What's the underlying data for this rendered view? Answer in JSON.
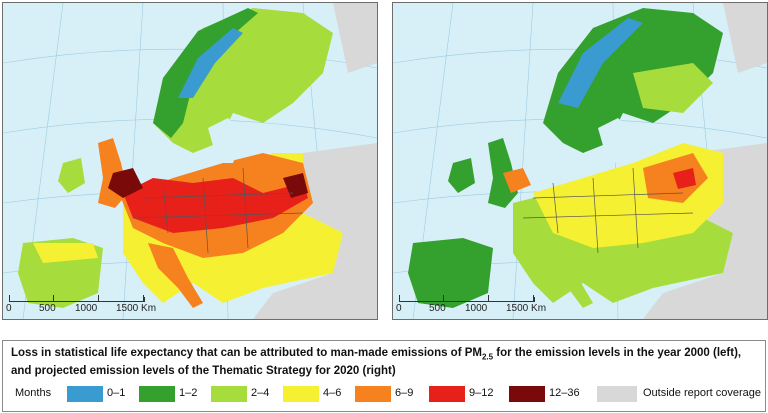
{
  "maps": {
    "left": {
      "scale": {
        "labels": [
          "0",
          "500",
          "1000",
          "1500 Km"
        ]
      }
    },
    "right": {
      "scale": {
        "labels": [
          "0",
          "500",
          "1000",
          "1500 Km"
        ]
      }
    }
  },
  "caption": {
    "text_pre": "Loss in statistical life expectancy that can be attributed to man-made emissions of PM",
    "pm_sub": "2.5",
    "text_post": " for the emission levels in the year 2000 (left), and projected emission levels of the Thematic Strategy for 2020 (right)"
  },
  "legend": {
    "title": "Months",
    "items": [
      {
        "label": "0–1",
        "color": "#3a9bd0"
      },
      {
        "label": "1–2",
        "color": "#34a02e"
      },
      {
        "label": "2–4",
        "color": "#a6dc3c"
      },
      {
        "label": "4–6",
        "color": "#f5f032"
      },
      {
        "label": "6–9",
        "color": "#f5821e"
      },
      {
        "label": "9–12",
        "color": "#e8201a"
      },
      {
        "label": "12–36",
        "color": "#7a0a0a"
      },
      {
        "label": "Outside report coverage",
        "color": "#d8d8d8"
      }
    ]
  }
}
